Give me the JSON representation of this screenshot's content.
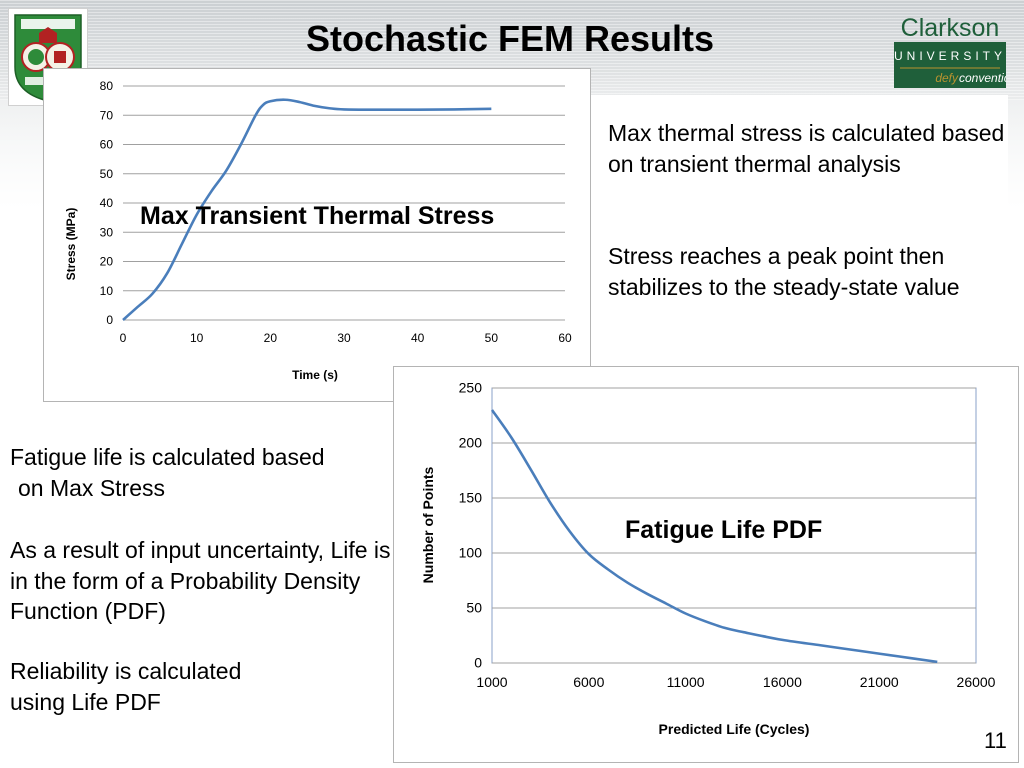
{
  "slide": {
    "title": "Stochastic FEM Results",
    "page_number": "11"
  },
  "logos": {
    "left": {
      "name": "university-seal-logo",
      "colors": {
        "green": "#2e8b3a",
        "red": "#b22222"
      }
    },
    "right": {
      "line1": "Clarkson",
      "line2": "UNIVERSITY",
      "tagline_defy": "defy",
      "tagline_convention": "convention",
      "colors": {
        "green": "#1f5f3a",
        "gold": "#b8932f"
      }
    }
  },
  "right_text": {
    "para1": "Max thermal stress is calculated based on transient thermal analysis",
    "para2": "Stress reaches a peak point then stabilizes to the steady-state value"
  },
  "left_text": {
    "para1_line1": "Fatigue life is calculated based",
    "para1_line2": "on Max Stress",
    "para2": "As a result of input uncertainty, Life is in the form of a Probability Density Function (PDF)",
    "para3_line1": "Reliability is calculated",
    "para3_line2": "using Life PDF"
  },
  "chart_data": [
    {
      "type": "line",
      "overlay_label": "Max Transient Thermal Stress",
      "xlabel": "Time (s)",
      "ylabel": "Stress (MPa)",
      "xlim": [
        0,
        60
      ],
      "ylim": [
        0,
        80
      ],
      "x_ticks": [
        0,
        10,
        20,
        30,
        40,
        50,
        60
      ],
      "y_ticks": [
        0,
        10,
        20,
        30,
        40,
        50,
        60,
        70,
        80
      ],
      "grid": "horizontal",
      "color": "#4a7ebb",
      "series": [
        {
          "x": [
            0,
            2,
            4,
            6,
            8,
            10,
            12,
            14,
            16,
            18,
            19,
            20,
            22,
            24,
            26,
            28,
            30,
            35,
            40,
            45,
            50
          ],
          "y": [
            0,
            4.5,
            9,
            16,
            26,
            36,
            44,
            51,
            60,
            70,
            73.5,
            74.8,
            75.3,
            74.5,
            73.2,
            72.4,
            72,
            71.9,
            71.9,
            72,
            72.2
          ]
        }
      ]
    },
    {
      "type": "line",
      "overlay_label": "Fatigue Life PDF",
      "xlabel": "Predicted Life (Cycles)",
      "ylabel": "Number of Points",
      "xlim": [
        1000,
        26000
      ],
      "ylim": [
        0,
        250
      ],
      "x_ticks": [
        1000,
        6000,
        11000,
        16000,
        21000,
        26000
      ],
      "y_ticks": [
        0,
        50,
        100,
        150,
        200,
        250
      ],
      "grid": "horizontal",
      "color": "#4a7ebb",
      "series": [
        {
          "x": [
            1000,
            2000,
            3000,
            4000,
            5000,
            6000,
            7000,
            8000,
            9000,
            10000,
            11000,
            12000,
            13000,
            14000,
            16000,
            18000,
            20000,
            22000,
            24000
          ],
          "y": [
            230,
            205,
            176,
            146,
            120,
            99,
            85,
            73,
            63,
            54,
            45,
            38,
            32,
            28,
            21,
            16,
            11,
            6,
            1
          ]
        }
      ]
    }
  ]
}
